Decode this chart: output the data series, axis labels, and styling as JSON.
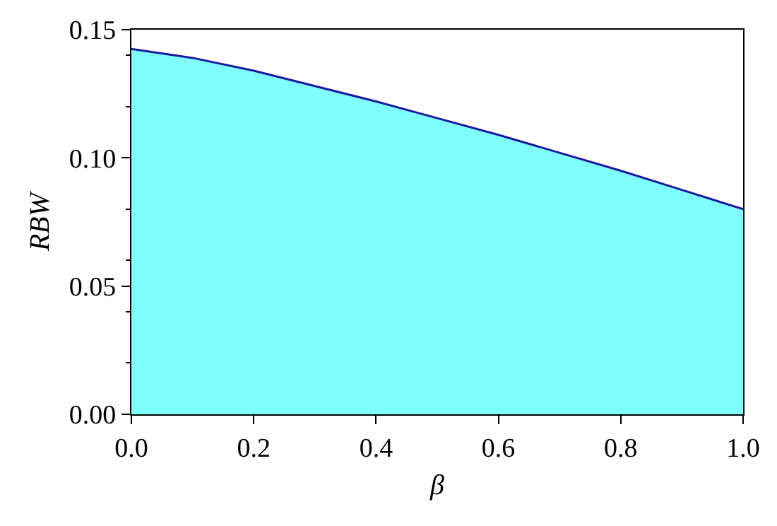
{
  "chart_data": {
    "type": "area",
    "xlabel": "β",
    "ylabel": "RBW",
    "x": [
      0.0,
      0.1,
      0.2,
      0.3,
      0.4,
      0.5,
      0.6,
      0.7,
      0.8,
      0.9,
      1.0
    ],
    "series": [
      {
        "color": "#80ffff",
        "values": [
          0.1425,
          0.139,
          0.134,
          0.128,
          0.122,
          0.1155,
          0.109,
          0.102,
          0.095,
          0.0875,
          0.08
        ]
      }
    ],
    "xlim": [
      0.0,
      1.0
    ],
    "ylim": [
      0.0,
      0.15
    ],
    "xticks": [
      {
        "value": 0.0,
        "label": "0.0"
      },
      {
        "value": 0.2,
        "label": "0.2"
      },
      {
        "value": 0.4,
        "label": "0.4"
      },
      {
        "value": 0.6,
        "label": "0.6"
      },
      {
        "value": 0.8,
        "label": "0.8"
      },
      {
        "value": 1.0,
        "label": "1.0"
      }
    ],
    "yticks": [
      {
        "value": 0.0,
        "label": "0.00"
      },
      {
        "value": 0.05,
        "label": "0.05"
      },
      {
        "value": 0.1,
        "label": "0.10"
      },
      {
        "value": 0.15,
        "label": "0.15"
      }
    ],
    "grid": false
  }
}
